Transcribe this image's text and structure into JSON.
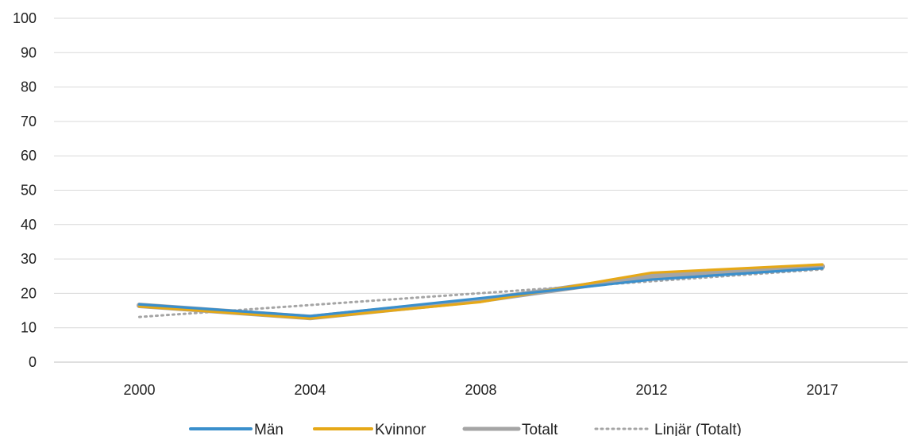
{
  "chart_data": {
    "type": "line",
    "title": "",
    "xlabel": "",
    "ylabel": "",
    "categories": [
      "2000",
      "2004",
      "2008",
      "2012",
      "2017"
    ],
    "ylim": [
      0,
      100
    ],
    "yticks": [
      0,
      10,
      20,
      30,
      40,
      50,
      60,
      70,
      80,
      90,
      100
    ],
    "grid": true,
    "legend_position": "bottom",
    "series": [
      {
        "name": "Totalt",
        "values": [
          16.5,
          13.0,
          18.0,
          25.0,
          27.8
        ],
        "color": "#A5A5A5",
        "style": "solid-thick"
      },
      {
        "name": "Kvinnor",
        "values": [
          16.2,
          12.7,
          17.5,
          26.0,
          28.4
        ],
        "color": "#E6A817",
        "style": "solid"
      },
      {
        "name": "Män",
        "values": [
          16.8,
          13.4,
          18.6,
          24.0,
          27.3
        ],
        "color": "#3A8FCC",
        "style": "solid"
      }
    ],
    "trendline": {
      "name": "Linjär (Totalt)",
      "color": "#A5A5A5",
      "style": "dotted",
      "of_series": "Totalt"
    },
    "legend": [
      "Män",
      "Kvinnor",
      "Totalt",
      "Linjär (Totalt)"
    ]
  }
}
